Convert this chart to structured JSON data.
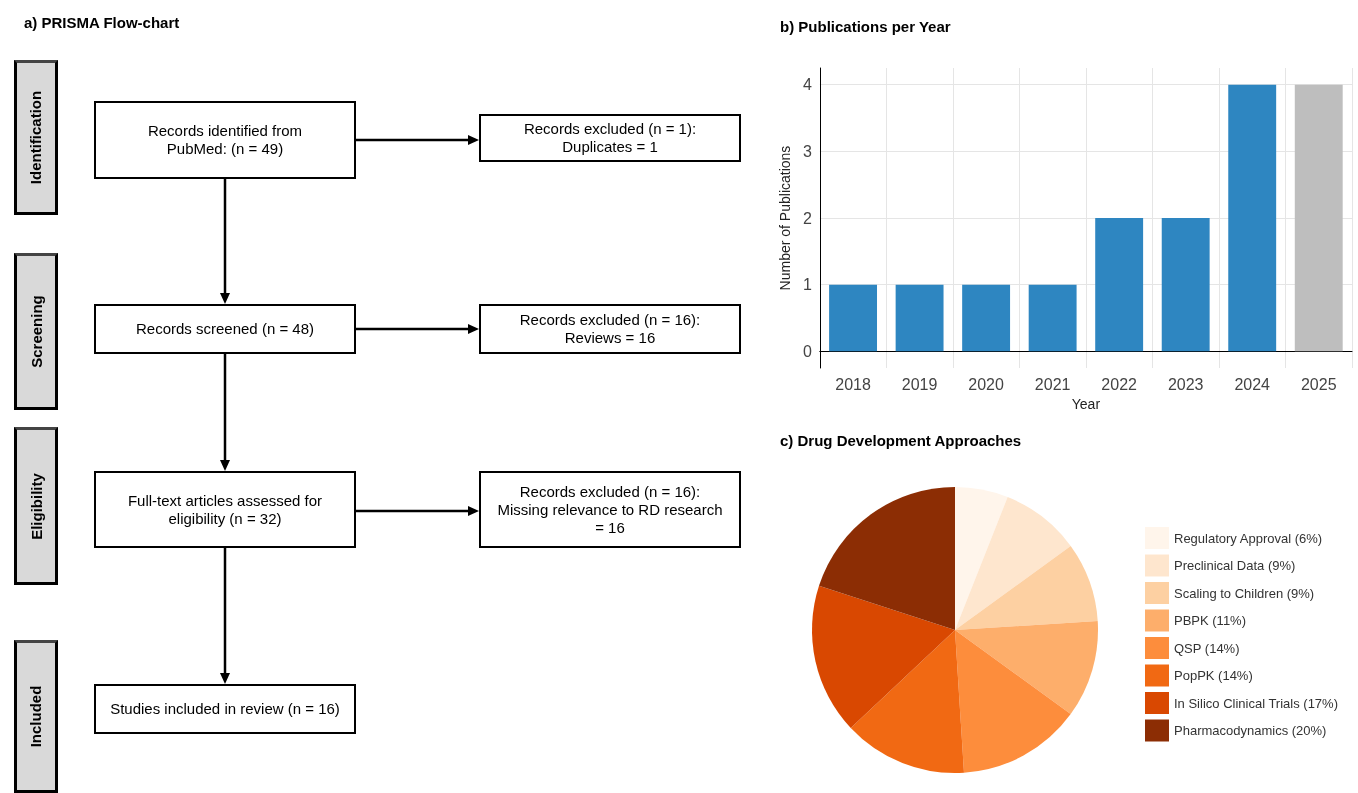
{
  "chart_data": [
    {
      "type": "other",
      "title": "a) PRISMA Flow-chart",
      "annotations": [
        "Identification",
        "Screening",
        "Eligibility",
        "Included",
        "Records identified from PubMed: (n = 49)",
        "Records screened (n = 48)",
        "Full-text articles assessed for eligibility (n = 32)",
        "Studies included in review (n = 16)",
        "Records excluded (n = 1): Duplicates = 1",
        "Records excluded (n = 16): Reviews = 16",
        "Records excluded (n = 16): Missing relevance to RD research = 16"
      ]
    },
    {
      "type": "bar",
      "title": "b) Publications per Year",
      "xlabel": "Year",
      "ylabel": "Number of Publications",
      "categories": [
        "2018",
        "2019",
        "2020",
        "2021",
        "2022",
        "2023",
        "2024",
        "2025"
      ],
      "values": [
        1,
        1,
        1,
        1,
        2,
        2,
        4,
        4
      ],
      "colors": [
        "#2e86c1",
        "#2e86c1",
        "#2e86c1",
        "#2e86c1",
        "#2e86c1",
        "#2e86c1",
        "#2e86c1",
        "#bebebe"
      ],
      "ylim": [
        -0.25,
        4.25
      ],
      "yticks": [
        0,
        1,
        2,
        3,
        4
      ],
      "grid": true
    },
    {
      "type": "pie",
      "title": "c) Drug Development Approaches",
      "categories": [
        "Regulatory Approval (6%)",
        "Preclinical Data (9%)",
        "Scaling to Children (9%)",
        "PBPK (11%)",
        "QSP (14%)",
        "PopPK (14%)",
        "In Silico Clinical Trials (17%)",
        "Pharmacodynamics (20%)"
      ],
      "values": [
        6,
        9,
        9,
        11,
        14,
        14,
        17,
        20
      ],
      "colors": [
        "#fff5eb",
        "#fee6ce",
        "#fdd0a2",
        "#fdae6b",
        "#fd8d3c",
        "#f16913",
        "#d94801",
        "#8c2d04"
      ],
      "legend": "right"
    }
  ]
}
